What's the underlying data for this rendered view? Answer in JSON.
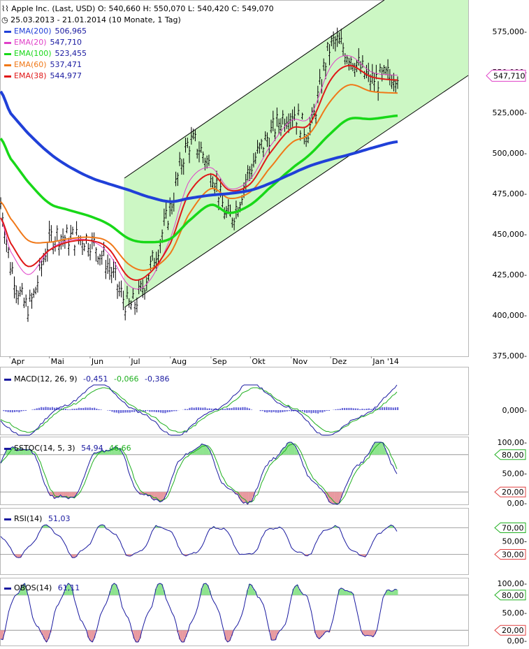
{
  "header": {
    "title": "Apple Inc. (Last, USD)",
    "ohlc": "O: 540,660  H: 550,070  L: 540,420  C: 549,070",
    "period": "25.03.2013 - 21.01.2014 (10 Monate, 1 Tag)"
  },
  "colors": {
    "ema200": "#2040d8",
    "ema20": "#e040c8",
    "ema100": "#18d818",
    "ema60": "#f07818",
    "ema38": "#e01818",
    "channel": "#ccf7c4",
    "macd": "#1a1aa0",
    "signal": "#20b020",
    "hist": "#6868d8",
    "overbought": "#8ee48e",
    "oversold": "#e89aa0"
  },
  "legend": [
    {
      "label": "EMA(200)",
      "value": "506,965",
      "key": "ema200"
    },
    {
      "label": "EMA(20)",
      "value": "547,710",
      "key": "ema20"
    },
    {
      "label": "EMA(100)",
      "value": "523,455",
      "key": "ema100"
    },
    {
      "label": "EMA(60)",
      "value": "537,471",
      "key": "ema60"
    },
    {
      "label": "EMA(38)",
      "value": "544,977",
      "key": "ema38"
    }
  ],
  "price_axis": [
    "575,000-",
    "550,000-",
    "525,000-",
    "500,000-",
    "475,000-",
    "450,000-",
    "425,000-",
    "400,000-",
    "375,000-"
  ],
  "last_price_tag": "547,710",
  "months": [
    "Apr",
    "Mai",
    "Jun",
    "Jul",
    "Aug",
    "Sep",
    "Okt",
    "Nov",
    "Dez",
    "Jan '14"
  ],
  "panels": {
    "macd": {
      "label": "MACD(12, 26, 9)",
      "v1": "-0,451",
      "v2": "-0,066",
      "v3": "-0,386",
      "axis": [
        "0,000-"
      ]
    },
    "sstoc": {
      "label": "SSTOC(14, 5, 3)",
      "v1": "54,94",
      "v2": "46,66",
      "axis": [
        "100,00-",
        "50,00-",
        "0,00-"
      ],
      "tags": [
        "80,00",
        "20,00"
      ]
    },
    "rsi": {
      "label": "RSI(14)",
      "v1": "51,03",
      "axis": [
        "50,00-"
      ],
      "tags": [
        "70,00",
        "30,00"
      ]
    },
    "obos": {
      "label": "OBOS(14)",
      "v1": "61,11",
      "axis": [
        "100,00-",
        "50,00-",
        "0,00-"
      ],
      "tags": [
        "80,00",
        "20,00"
      ]
    }
  },
  "chart_data": {
    "type": "line",
    "title": "Apple Inc. (Last, USD)",
    "xlabel": "",
    "ylabel": "",
    "ylim": [
      375,
      585
    ],
    "x": [
      "2013-03-25",
      "2013-04-01",
      "2013-04-15",
      "2013-05-01",
      "2013-05-15",
      "2013-06-01",
      "2013-06-15",
      "2013-07-01",
      "2013-07-15",
      "2013-08-01",
      "2013-08-15",
      "2013-09-01",
      "2013-09-15",
      "2013-10-01",
      "2013-10-15",
      "2013-11-01",
      "2013-11-15",
      "2013-12-01",
      "2013-12-15",
      "2014-01-01",
      "2014-01-21"
    ],
    "series": [
      {
        "name": "Apple Inc. (Last, USD)",
        "values": [
          468,
          432,
          405,
          445,
          447,
          445,
          430,
          405,
          425,
          465,
          505,
          490,
          460,
          490,
          510,
          525,
          515,
          565,
          560,
          545,
          549
        ]
      },
      {
        "name": "EMA(200)",
        "values": [
          538,
          525,
          512,
          500,
          492,
          485,
          481,
          477,
          473,
          470,
          472,
          474,
          475,
          477,
          481,
          487,
          492,
          496,
          499,
          503,
          507
        ]
      },
      {
        "name": "EMA(20)",
        "values": [
          460,
          440,
          425,
          440,
          446,
          446,
          438,
          418,
          420,
          447,
          482,
          491,
          478,
          484,
          503,
          520,
          522,
          553,
          560,
          550,
          548
        ]
      },
      {
        "name": "EMA(100)",
        "values": [
          509,
          497,
          482,
          469,
          465,
          461,
          456,
          447,
          445,
          447,
          458,
          468,
          463,
          468,
          478,
          490,
          499,
          512,
          521,
          521,
          523
        ]
      },
      {
        "name": "EMA(60)",
        "values": [
          470,
          460,
          446,
          445,
          447,
          448,
          445,
          431,
          428,
          438,
          462,
          478,
          472,
          476,
          490,
          506,
          512,
          532,
          542,
          538,
          537
        ]
      },
      {
        "name": "EMA(38)",
        "values": [
          460,
          445,
          430,
          440,
          445,
          446,
          441,
          423,
          425,
          444,
          475,
          487,
          477,
          481,
          499,
          515,
          518,
          545,
          554,
          547,
          545
        ]
      }
    ]
  }
}
